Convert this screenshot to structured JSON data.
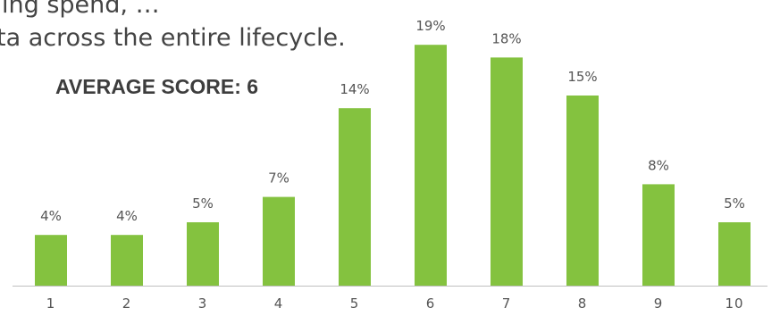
{
  "background_text": {
    "line1": "ing spend, …",
    "line2": "ta across the entire lifecycle."
  },
  "average_score_label": "AVERAGE SCORE: 6",
  "colors": {
    "bar": "#84c23f",
    "text": "#555555",
    "axis": "#bfbfbf"
  },
  "chart_data": {
    "type": "bar",
    "categories": [
      "1",
      "2",
      "3",
      "4",
      "5",
      "6",
      "7",
      "8",
      "9",
      "10"
    ],
    "values": [
      4,
      4,
      5,
      7,
      14,
      19,
      18,
      15,
      8,
      5
    ],
    "data_labels": [
      "4%",
      "4%",
      "5%",
      "7%",
      "14%",
      "19%",
      "18%",
      "15%",
      "8%",
      "5%"
    ],
    "title": "",
    "xlabel": "",
    "ylabel": "",
    "ylim": [
      0,
      20
    ],
    "grid": false,
    "legend": "none"
  }
}
